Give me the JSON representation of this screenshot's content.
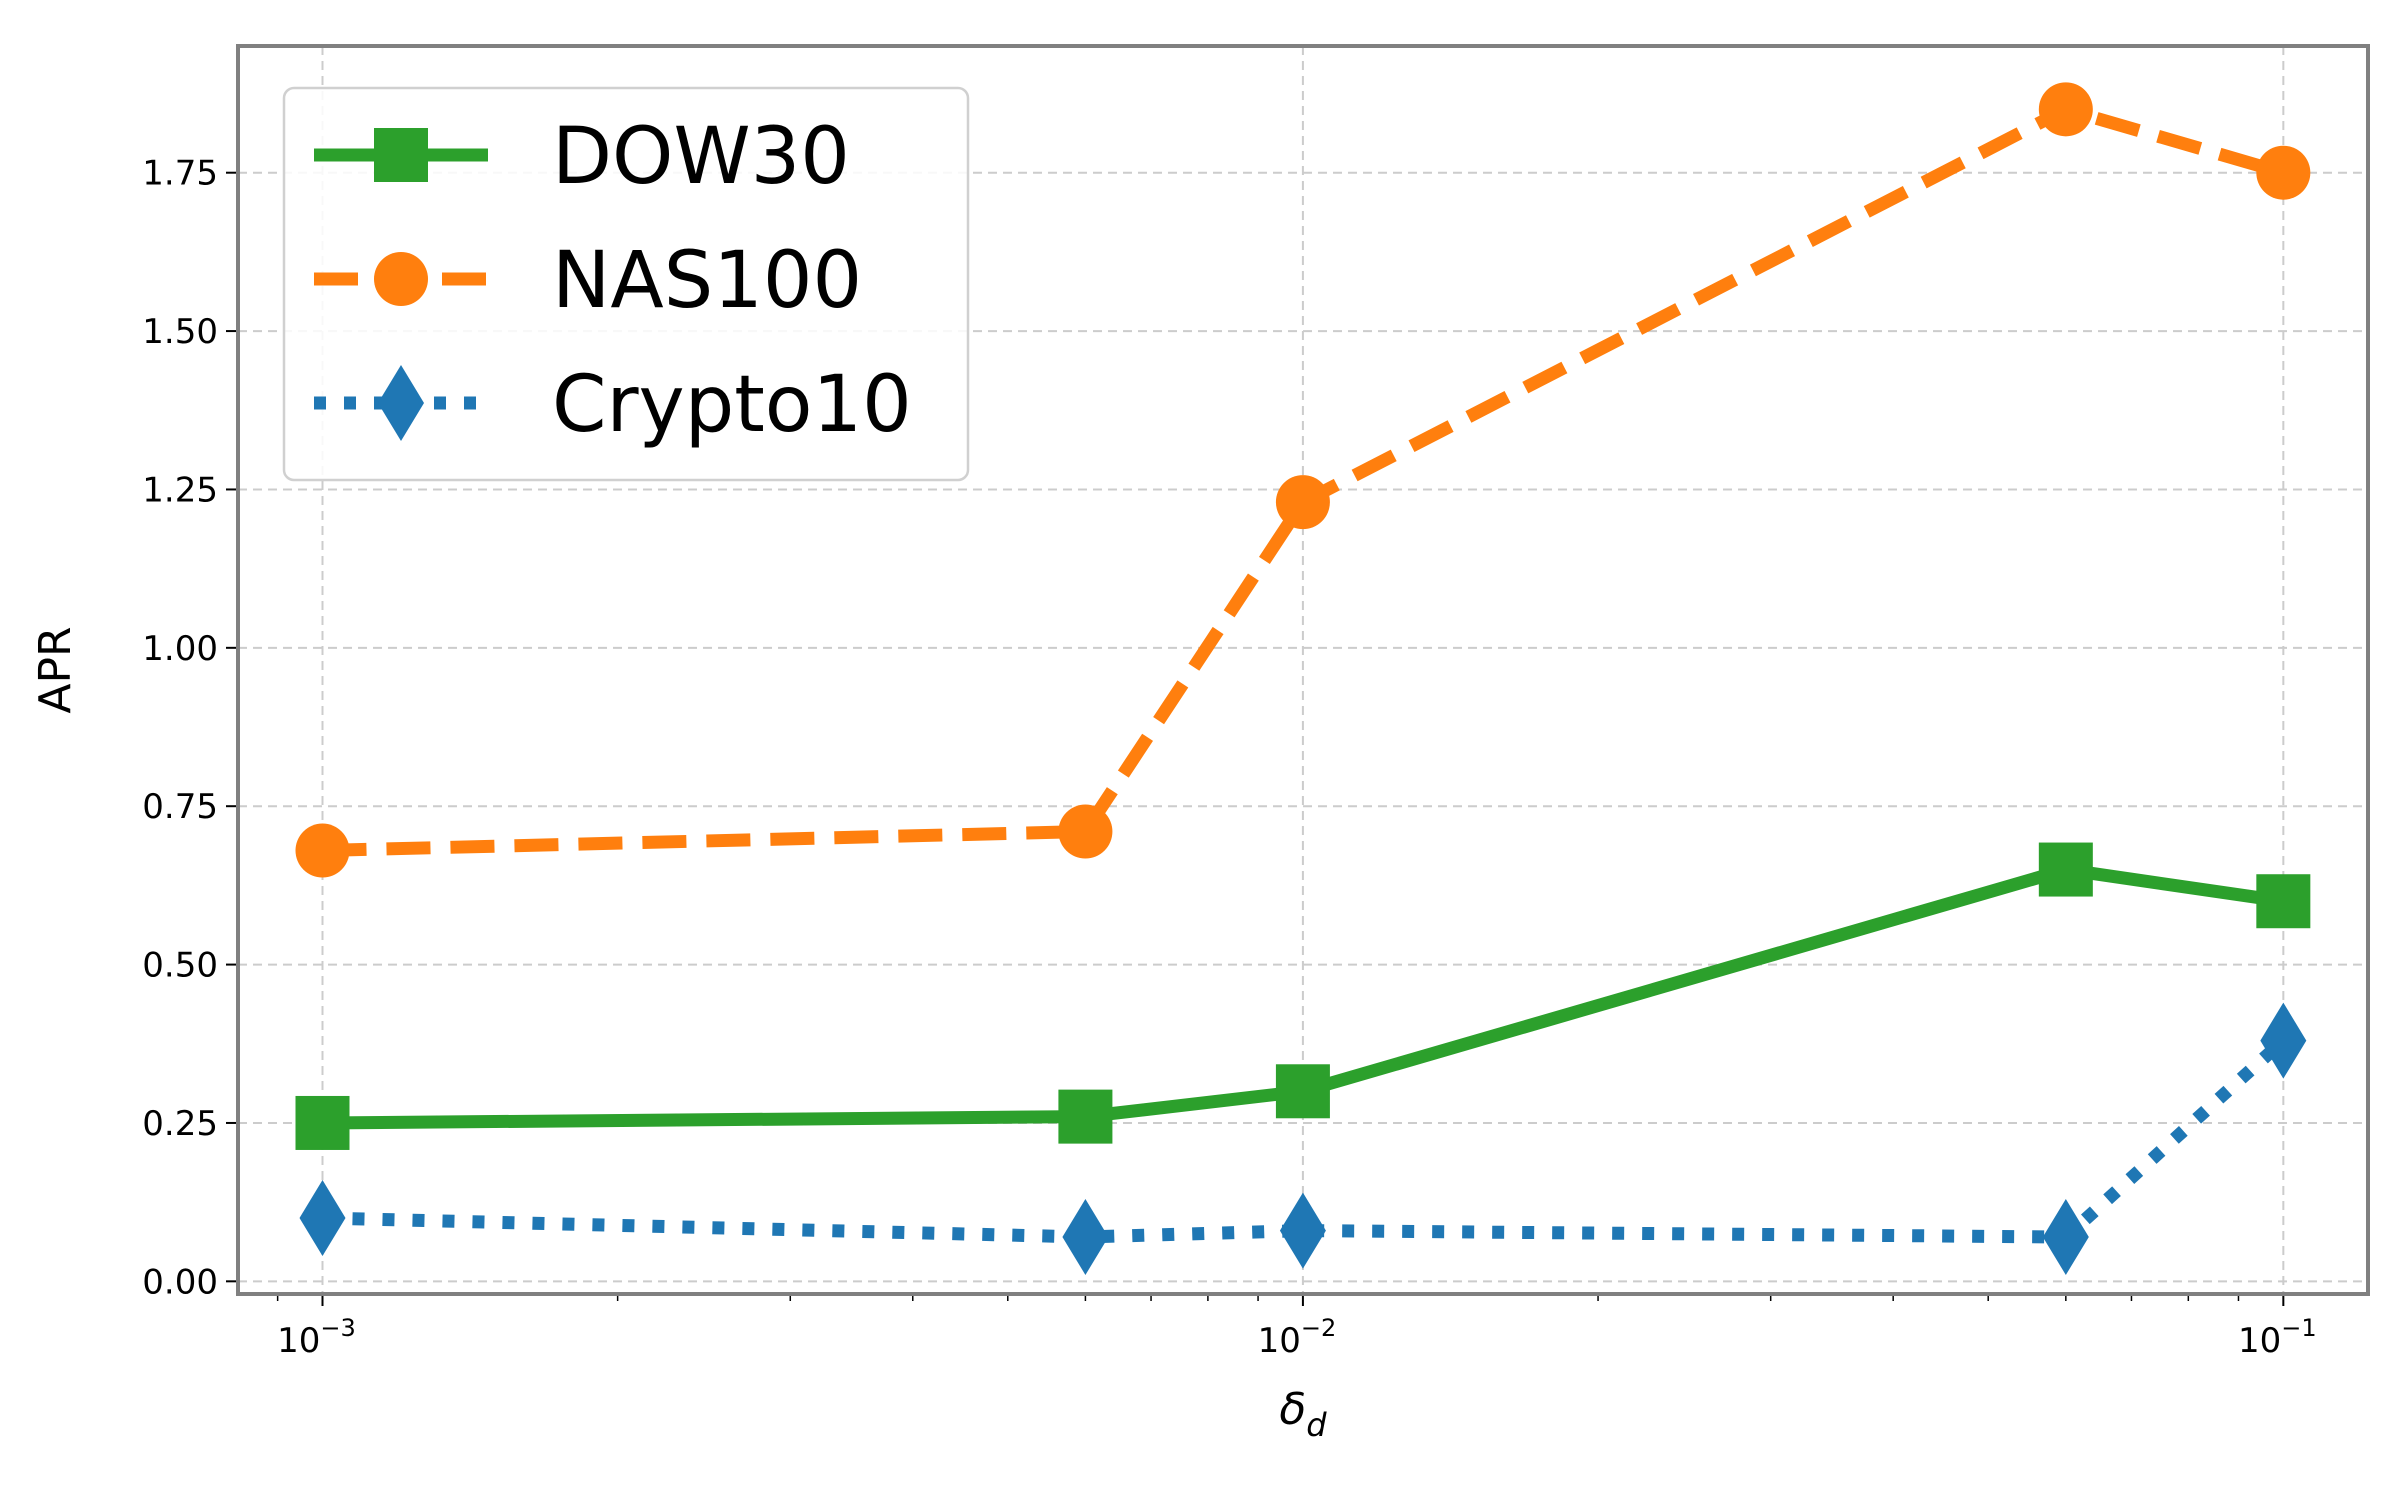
{
  "chart_data": {
    "type": "line",
    "x_scale": "log",
    "xlabel_main": "δ",
    "xlabel_sub": "d",
    "ylabel": "APR",
    "xlim": [
      0.00082,
      0.122
    ],
    "ylim": [
      -0.02,
      1.95
    ],
    "grid": true,
    "legend_position": "top-left",
    "x": [
      0.001,
      0.006,
      0.01,
      0.06,
      0.1
    ],
    "x_ticks": [
      {
        "value": 0.001,
        "base": "10",
        "exp": "−3"
      },
      {
        "value": 0.01,
        "base": "10",
        "exp": "−2"
      },
      {
        "value": 0.1,
        "base": "10",
        "exp": "−1"
      }
    ],
    "y_ticks": [
      {
        "value": 0.0,
        "label": "0.00"
      },
      {
        "value": 0.25,
        "label": "0.25"
      },
      {
        "value": 0.5,
        "label": "0.50"
      },
      {
        "value": 0.75,
        "label": "0.75"
      },
      {
        "value": 1.0,
        "label": "1.00"
      },
      {
        "value": 1.25,
        "label": "1.25"
      },
      {
        "value": 1.5,
        "label": "1.50"
      },
      {
        "value": 1.75,
        "label": "1.75"
      }
    ],
    "series": [
      {
        "name": "DOW30",
        "values": [
          0.25,
          0.26,
          0.3,
          0.65,
          0.6
        ],
        "color": "#2ca02c",
        "line_style": "solid",
        "marker": "square"
      },
      {
        "name": "NAS100",
        "values": [
          0.68,
          0.71,
          1.23,
          1.85,
          1.75
        ],
        "color": "#ff7f0e",
        "line_style": "dashed",
        "marker": "circle"
      },
      {
        "name": "Crypto10",
        "values": [
          0.1,
          0.07,
          0.08,
          0.07,
          0.38
        ],
        "color": "#1f77b4",
        "line_style": "dotted",
        "marker": "diamond"
      }
    ]
  }
}
